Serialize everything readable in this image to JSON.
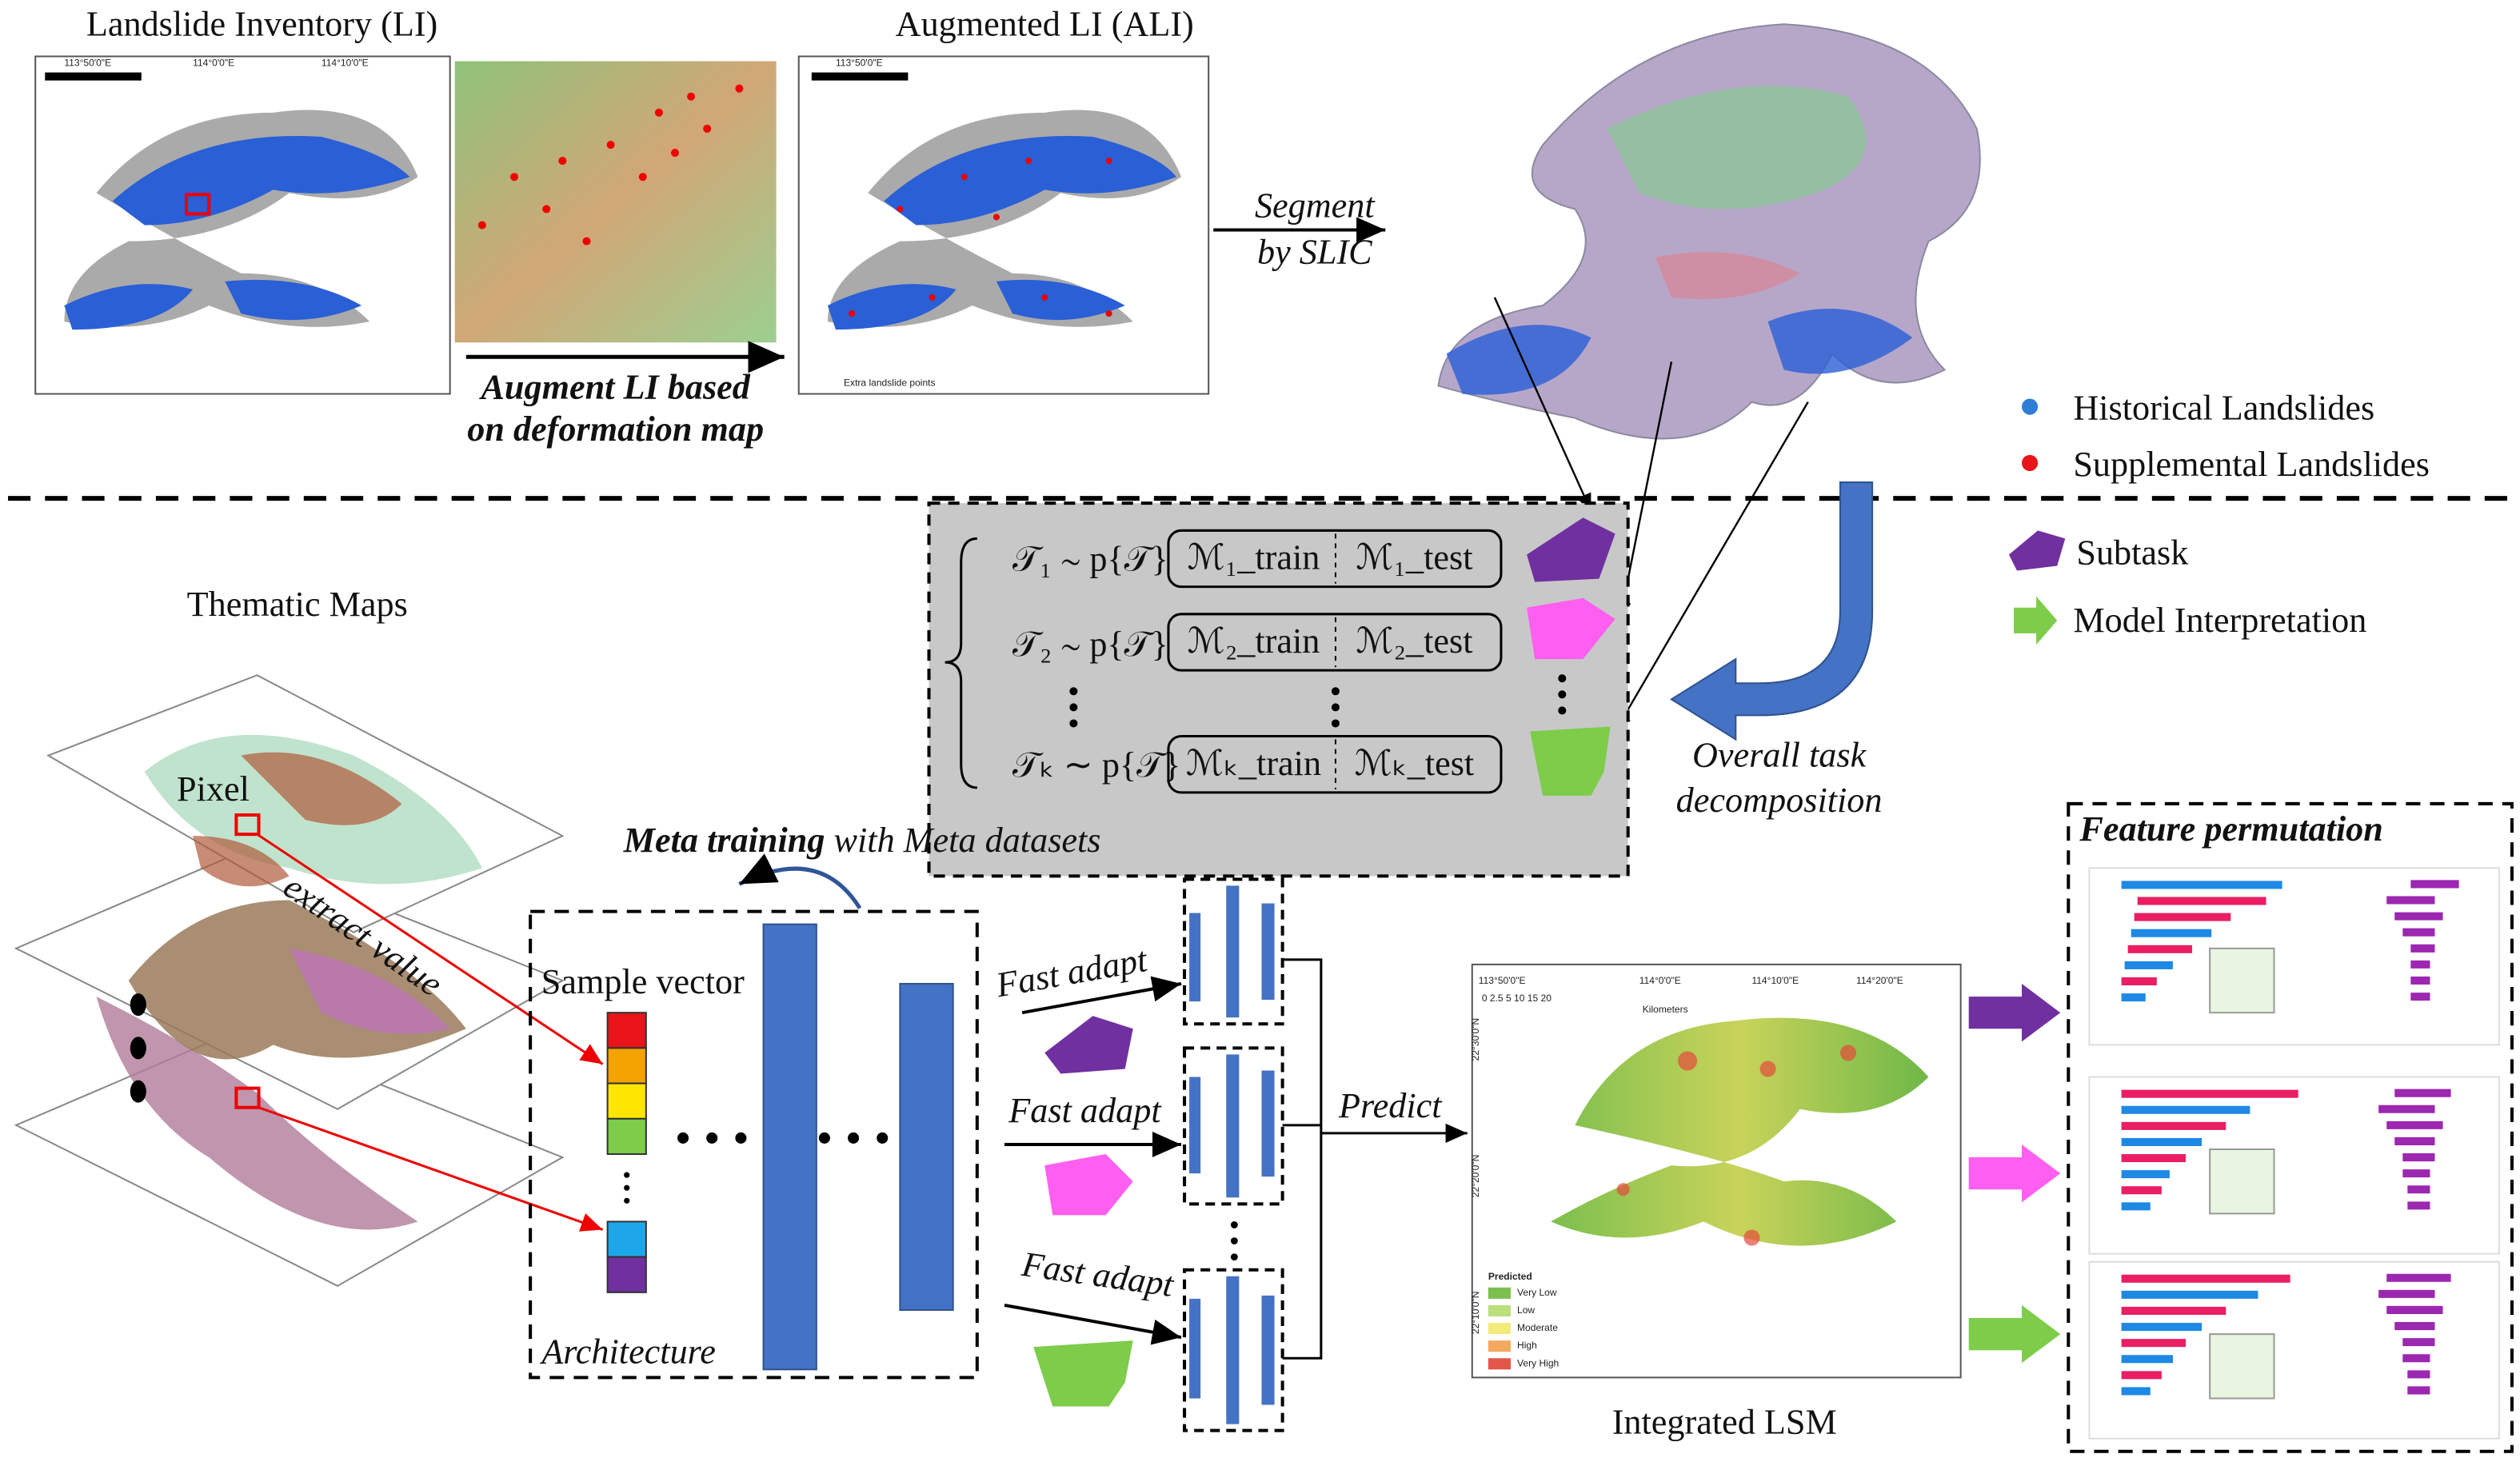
{
  "header": {
    "left_title": "Landslide Inventory (LI)",
    "right_title": "Augmented LI (ALI)"
  },
  "augment": {
    "line1": "Augment LI based",
    "line2": "on deformation map"
  },
  "segment": {
    "line1": "Segment",
    "line2": "by SLIC"
  },
  "map_labels": {
    "lon": [
      "113°50'0\"E",
      "114°0'0\"E",
      "114°10'0\"E",
      "114°20'0\"E"
    ],
    "lat": [
      "22°30'0\"N",
      "22°20'0\"N",
      "22°10'0\"N"
    ],
    "scale": "0 2.5 5     10     15     20",
    "units": "Kilometers",
    "extra": "Extra landslide points"
  },
  "legend": {
    "historical": "Historical Landslides",
    "supplemental": "Supplemental Landslides",
    "subtask": "Subtask",
    "interpretation": "Model Interpretation"
  },
  "thematic": {
    "title": "Thematic Maps",
    "pixel": "Pixel",
    "extract": "extract value"
  },
  "meta": {
    "bold": "Meta training",
    "rest": " with Meta datasets"
  },
  "tasks": [
    {
      "task": "𝒯₁ ∼ p{𝒯}",
      "train": "ℳ₁_train",
      "test": "ℳ₁_test"
    },
    {
      "task": "𝒯₂ ∼ p{𝒯}",
      "train": "ℳ₂_train",
      "test": "ℳ₂_test"
    },
    {
      "task": "𝒯ₖ ∼ p{𝒯}",
      "train": "ℳₖ_train",
      "test": "ℳₖ_test"
    }
  ],
  "decomposition": {
    "line1": "Overall task",
    "line2": "decomposition"
  },
  "architecture": {
    "sample": "Sample vector",
    "label": "Architecture"
  },
  "adapt": [
    "Fast adapt",
    "Fast adapt",
    "Fast adapt"
  ],
  "predict": "Predict",
  "lsm": {
    "title": "Integrated LSM",
    "legend_title": "Predicted",
    "classes": [
      "Very Low",
      "Low",
      "Moderate",
      "High",
      "Very High"
    ]
  },
  "feature": {
    "title": "Feature permutation"
  }
}
